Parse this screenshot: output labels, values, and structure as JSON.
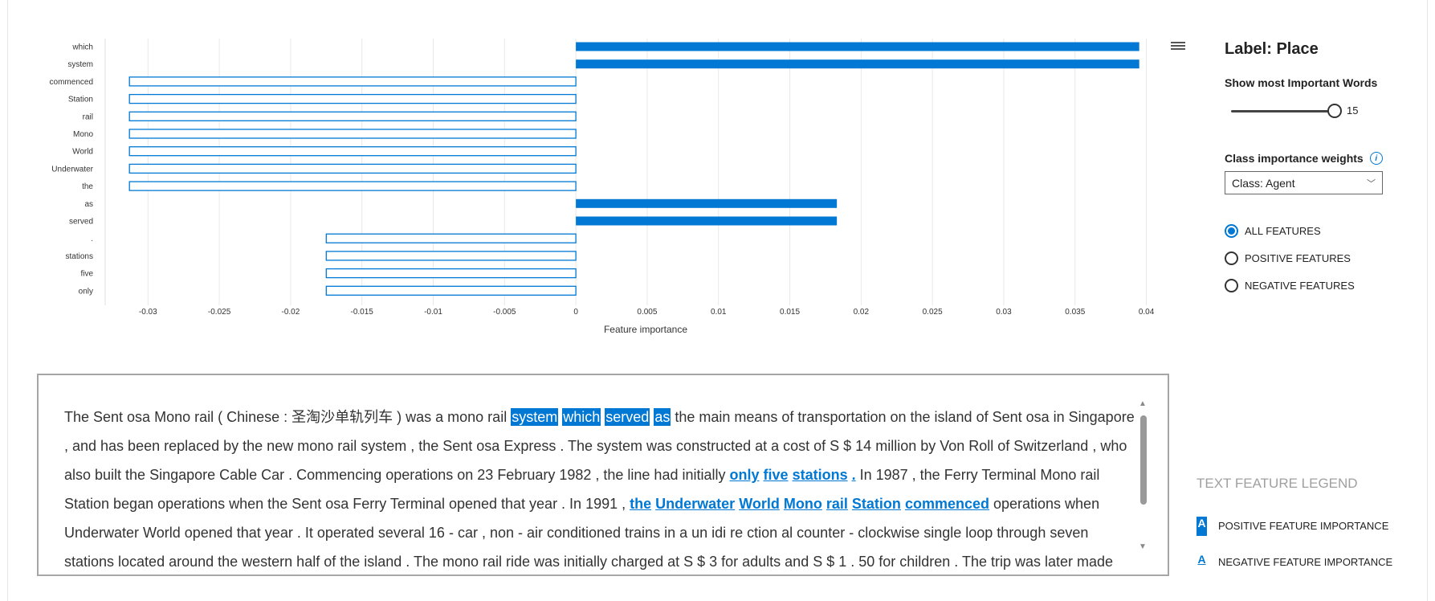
{
  "chart_data": {
    "type": "bar",
    "orientation": "horizontal",
    "categories": [
      "which",
      "system",
      "commenced",
      "Station",
      "rail",
      "Mono",
      "World",
      "Underwater",
      "the",
      "as",
      "served",
      ".",
      "stations",
      "five",
      "only"
    ],
    "values": [
      0.0395,
      0.0395,
      -0.0313,
      -0.0313,
      -0.0313,
      -0.0313,
      -0.0313,
      -0.0313,
      -0.0313,
      0.0183,
      0.0183,
      -0.0175,
      -0.0175,
      -0.0175,
      -0.0175
    ],
    "xlabel": "Feature importance",
    "xlim": [
      -0.033,
      0.0407
    ],
    "xticks": [
      -0.03,
      -0.025,
      -0.02,
      -0.015,
      -0.01,
      -0.005,
      0,
      0.005,
      0.01,
      0.015,
      0.02,
      0.025,
      0.03,
      0.035,
      0.04
    ],
    "xtick_labels": [
      "-0.03",
      "-0.025",
      "-0.02",
      "-0.015",
      "-0.01",
      "-0.005",
      "0",
      "0.005",
      "0.01",
      "0.015",
      "0.02",
      "0.025",
      "0.03",
      "0.035",
      "0.04"
    ],
    "grid": true,
    "positive_color": "#0078d4",
    "negative_style": "outlined"
  },
  "panel": {
    "label_title": "Label: Place",
    "top_words_label": "Show most Important Words",
    "top_words_value": "15",
    "top_words_fraction": 1.0,
    "weights_label": "Class importance weights",
    "info_icon": "i",
    "class_select_value": "Class: Agent",
    "radio_all": "ALL FEATURES",
    "radio_positive": "POSITIVE FEATURES",
    "radio_negative": "NEGATIVE FEATURES",
    "selected_radio": "ALL FEATURES"
  },
  "text": {
    "s1": " The Sent osa Mono rail ( Chinese : 圣淘沙单轨列车 ) was a mono rail ",
    "w_system": "system",
    "w_which": "which",
    "w_served": "served",
    "w_as": "as",
    "s2": " the main means of transportation on the island of Sent osa in Singapore , and has been replaced by the new mono rail system , the Sent osa Express . The system was constructed at a cost of S $ 14 million by Von Roll of Switzerland , who also built the Singapore Cable Car . Commencing operations on 23 February 1982 , the line had initially ",
    "w_only": "only",
    "w_five": "five",
    "w_stations": "stations",
    "w_dot": ".",
    "s3": " In 1987 , the Ferry Terminal Mono rail Station began operations when the Sent osa Ferry Terminal opened that year . In 1991 , ",
    "w_the": "the",
    "w_underwater": "Underwater",
    "w_world": "World",
    "w_mono": "Mono",
    "w_rail": "rail",
    "w_station": "Station",
    "w_commenced": "commenced",
    "s4": " operations when Underwater World opened that year . It operated several 16 - car , non - air conditioned trains in a un idi re ction al counter - clockwise single loop through seven stations located around the western half of the island . The mono rail ride was initially charged at S $ 3 for adults and S $ 1 . 50 for children . The trip was later made free for ..."
  },
  "legend": {
    "title": "TEXT FEATURE LEGEND",
    "swatch_letter": "A",
    "positive_label": "POSITIVE FEATURE IMPORTANCE",
    "negative_label": "NEGATIVE FEATURE IMPORTANCE"
  },
  "icons": {
    "menu": "hamburger-icon",
    "dropdown": "chevron-down-icon",
    "scroll_up": "▲",
    "scroll_down": "▼",
    "chevron": "﹀"
  }
}
